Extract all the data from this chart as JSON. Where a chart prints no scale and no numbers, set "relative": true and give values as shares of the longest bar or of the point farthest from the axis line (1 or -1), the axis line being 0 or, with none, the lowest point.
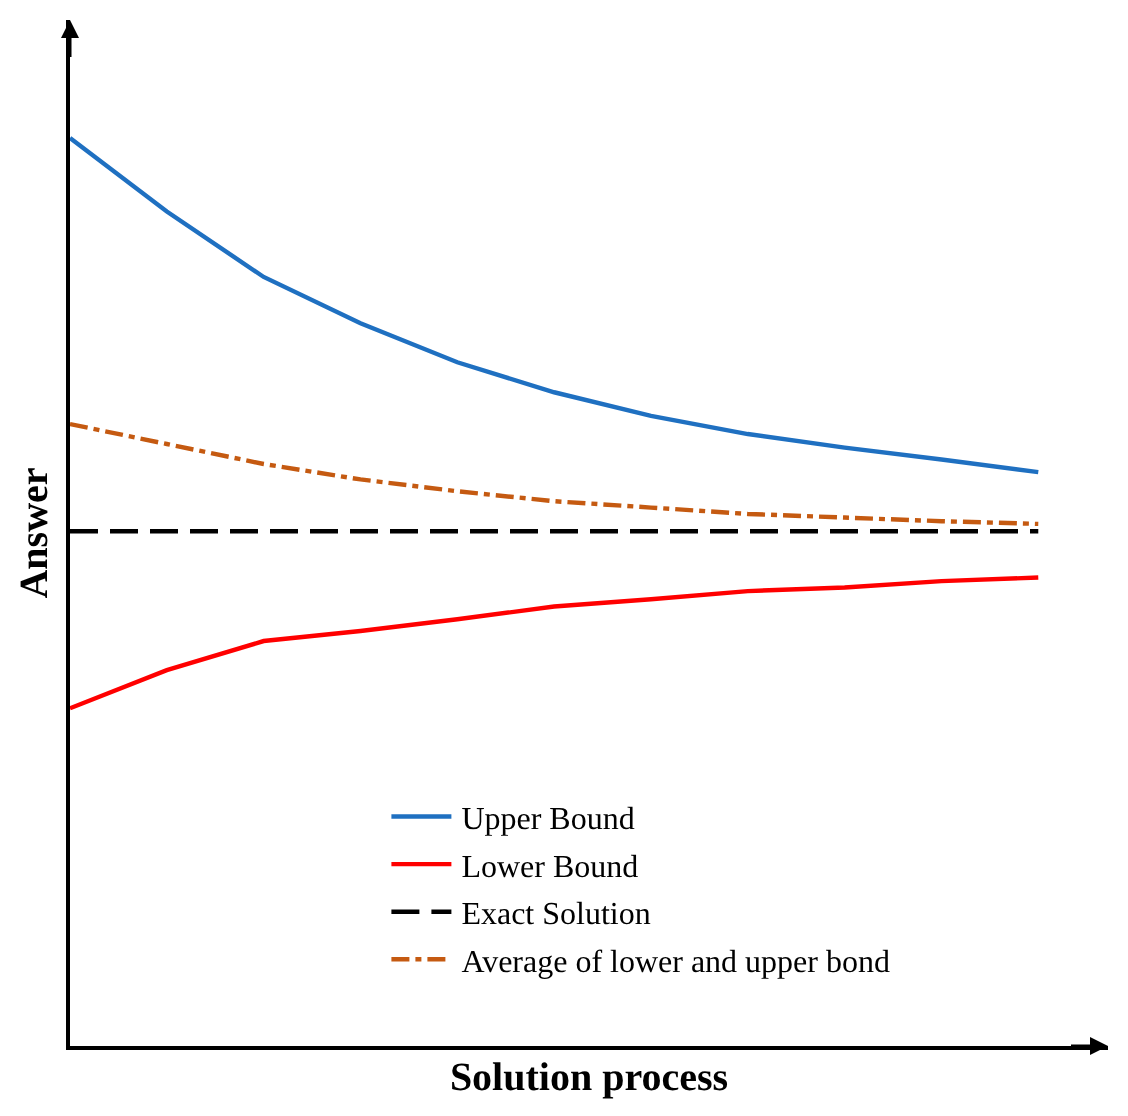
{
  "chart_data": {
    "type": "line",
    "relative": true,
    "xlabel": "Solution process",
    "ylabel": "Answer",
    "categories": [
      null,
      null,
      null,
      null,
      null,
      null,
      null,
      null,
      null,
      null,
      null
    ],
    "series": [
      {
        "name": "Upper Bound",
        "color": "#1f70c1",
        "line_style": "solid",
        "values": [
          1,
          0.919,
          0.847,
          0.796,
          0.753,
          0.72,
          0.694,
          0.674,
          0.659,
          0.646,
          0.632
        ]
      },
      {
        "name": "Lower Bound",
        "color": "#ff0000",
        "line_style": "solid",
        "values": [
          0.372,
          0.414,
          0.446,
          0.457,
          0.47,
          0.484,
          0.492,
          0.501,
          0.505,
          0.512,
          0.516
        ]
      },
      {
        "name": "Exact Solution",
        "color": "#000000",
        "line_style": "dashed",
        "values": [
          0.567,
          0.567,
          0.567,
          0.567,
          0.567,
          0.567,
          0.567,
          0.567,
          0.567,
          0.567,
          0.567
        ]
      },
      {
        "name": "Average of lower and upper bond",
        "color": "#c55a11",
        "line_style": "dashdot",
        "values": [
          0.685,
          0.663,
          0.641,
          0.624,
          0.611,
          0.6,
          0.593,
          0.586,
          0.582,
          0.578,
          0.575
        ]
      }
    ],
    "grid": false,
    "legend": "bottom right",
    "marker": "none"
  }
}
